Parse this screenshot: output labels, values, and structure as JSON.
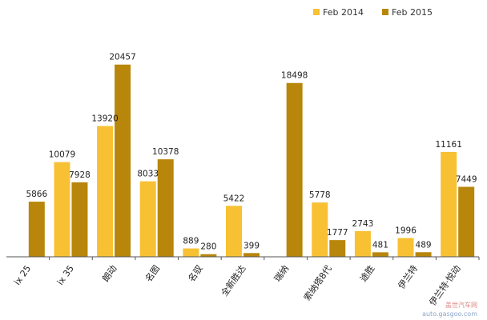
{
  "chart_data": {
    "type": "bar",
    "title": "",
    "xlabel": "",
    "ylabel": "",
    "ylim": [
      0,
      23500
    ],
    "grid": false,
    "legend_position": "top-right",
    "categories": [
      "ix 25",
      "ix 35",
      "朗动",
      "名图",
      "名驭",
      "全新胜达",
      "瑞纳",
      "索纳塔8代",
      "途胜",
      "伊兰特",
      "伊兰特·悦动"
    ],
    "series": [
      {
        "name": "Feb 2014",
        "color": "#F8C033",
        "values": [
          null,
          10079,
          13920,
          8033,
          889,
          5422,
          null,
          5778,
          2743,
          1996,
          11161
        ]
      },
      {
        "name": "Feb 2015",
        "color": "#B8860B",
        "values": [
          5866,
          7928,
          20457,
          10378,
          280,
          399,
          18498,
          1777,
          481,
          489,
          7449
        ]
      }
    ]
  },
  "watermark": {
    "line1": "盖世汽车网",
    "line2": "auto.gasgoo.com"
  }
}
